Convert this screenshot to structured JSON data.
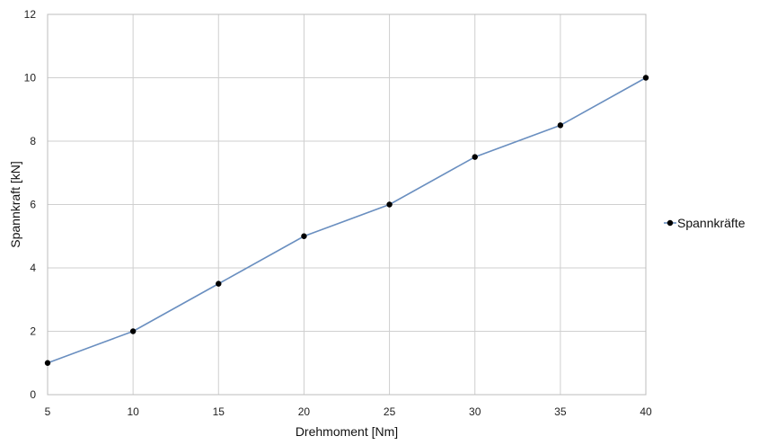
{
  "chart_data": {
    "type": "line",
    "title": "",
    "xlabel": "Drehmoment [Nm]",
    "ylabel": "Spannkraft [kN]",
    "x": [
      5,
      10,
      15,
      20,
      25,
      30,
      35,
      40
    ],
    "xlim": [
      5,
      40
    ],
    "ylim": [
      0,
      12
    ],
    "xticks": [
      5,
      10,
      15,
      20,
      25,
      30,
      35,
      40
    ],
    "yticks": [
      0,
      2,
      4,
      6,
      8,
      10,
      12
    ],
    "grid": true,
    "legend_position": "right",
    "series": [
      {
        "name": "Spannkräfte",
        "color": "#6a8fc0",
        "marker_color": "#000000",
        "values": [
          1,
          2,
          3.5,
          5,
          6,
          7.5,
          8.5,
          10
        ]
      }
    ]
  }
}
